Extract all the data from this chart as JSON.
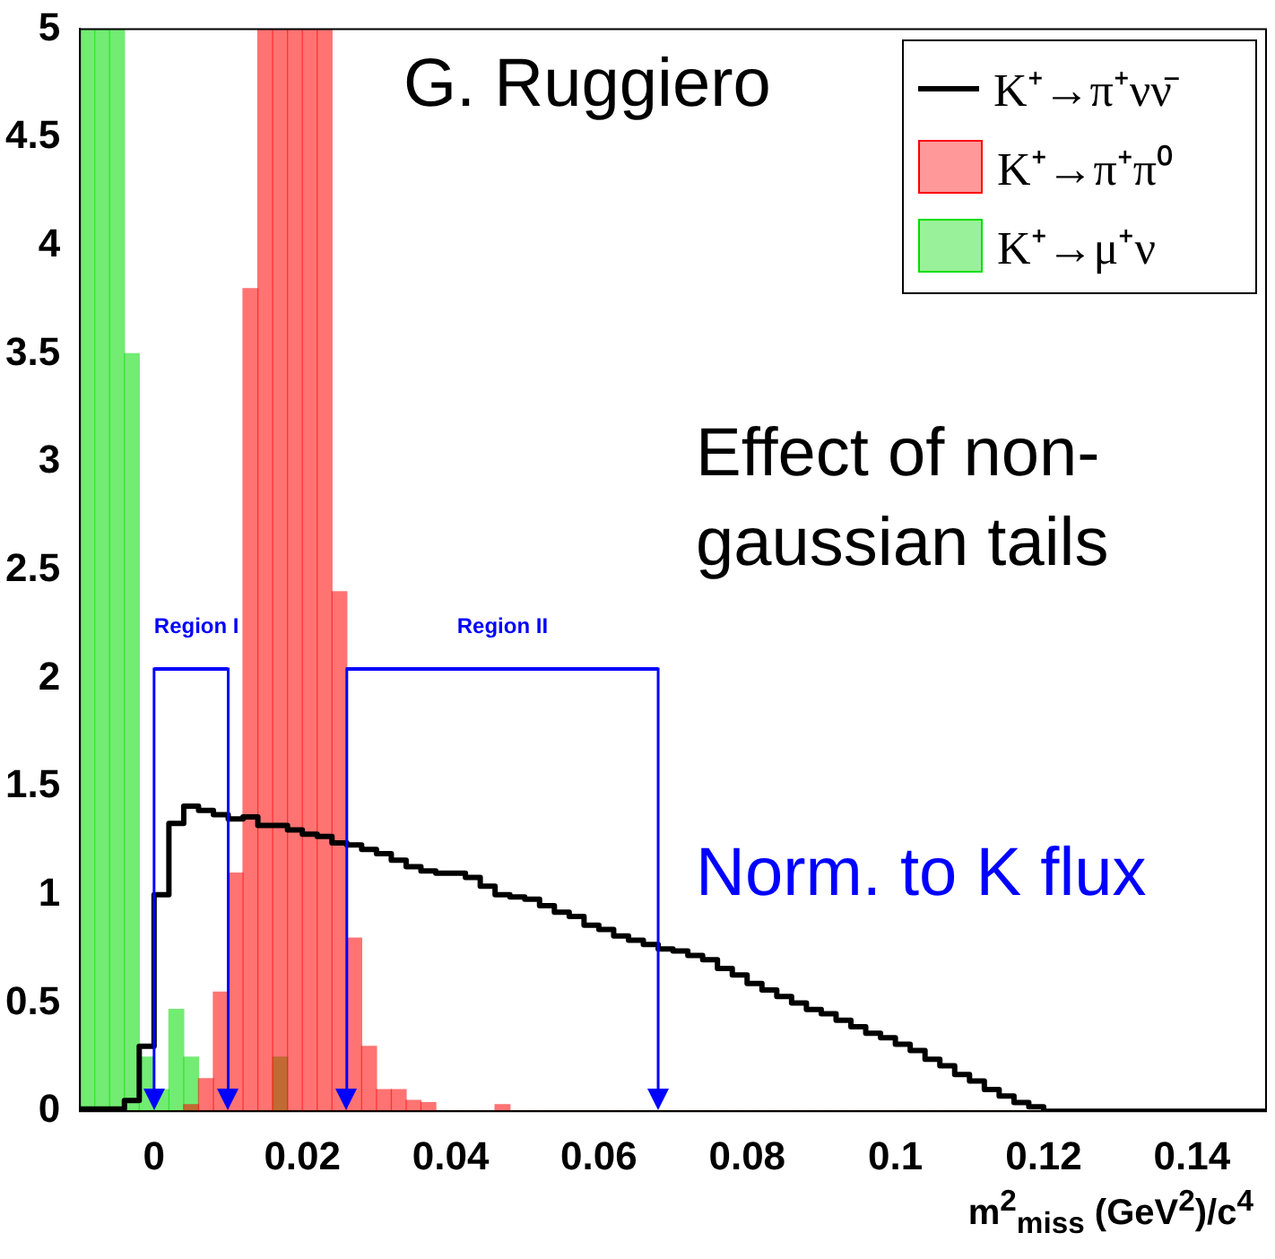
{
  "chart_data": {
    "type": "histogram",
    "xlabel": "m$^{2}$$_{miss}$ (GeV$^{2}$)/c$^{4}$",
    "bins": [
      -0.01,
      -0.008,
      -0.006,
      -0.004,
      -0.002,
      0,
      0.002,
      0.004,
      0.006,
      0.008,
      0.01,
      0.012,
      0.014,
      0.016,
      0.018,
      0.02,
      0.022,
      0.024,
      0.026,
      0.028,
      0.03,
      0.032,
      0.034,
      0.036,
      0.038,
      0.04,
      0.042,
      0.044,
      0.046,
      0.048,
      0.05,
      0.052,
      0.054,
      0.056,
      0.058,
      0.06,
      0.062,
      0.064,
      0.066,
      0.068,
      0.07,
      0.072,
      0.074,
      0.076,
      0.078,
      0.08,
      0.082,
      0.084,
      0.086,
      0.088,
      0.09,
      0.092,
      0.094,
      0.096,
      0.098,
      0.1,
      0.102,
      0.104,
      0.106,
      0.108,
      0.11,
      0.112,
      0.114,
      0.116,
      0.118,
      0.12,
      0.122,
      0.124,
      0.126,
      0.128,
      0.13,
      0.132,
      0.134,
      0.136,
      0.138,
      0.14,
      0.142,
      0.144,
      0.146,
      0.148,
      0.15
    ],
    "series": [
      {
        "name": "K⁺→π⁺νν̄",
        "color": "#000000",
        "values": [
          0.01,
          0.01,
          0.01,
          0.05,
          0.3,
          1.0,
          1.33,
          1.41,
          1.39,
          1.37,
          1.35,
          1.36,
          1.32,
          1.32,
          1.3,
          1.28,
          1.27,
          1.24,
          1.23,
          1.21,
          1.19,
          1.16,
          1.13,
          1.11,
          1.1,
          1.1,
          1.08,
          1.04,
          1.0,
          0.99,
          0.98,
          0.95,
          0.92,
          0.9,
          0.86,
          0.84,
          0.81,
          0.79,
          0.77,
          0.75,
          0.74,
          0.72,
          0.7,
          0.66,
          0.63,
          0.59,
          0.56,
          0.53,
          0.5,
          0.47,
          0.45,
          0.42,
          0.39,
          0.36,
          0.34,
          0.31,
          0.28,
          0.24,
          0.21,
          0.17,
          0.14,
          0.1,
          0.07,
          0.04,
          0.02,
          0,
          0,
          0,
          0,
          0,
          0,
          0,
          0,
          0,
          0,
          0,
          0,
          0,
          0,
          0
        ]
      },
      {
        "name": "K⁺→π⁺π⁰",
        "color": "#ff0000",
        "values": [
          0,
          0,
          0,
          0,
          0,
          0,
          0,
          0.03,
          0.15,
          0.55,
          1.1,
          3.8,
          5,
          5,
          5,
          5,
          5,
          2.4,
          0.8,
          0.3,
          0.1,
          0.1,
          0.05,
          0.04,
          0,
          0,
          0,
          0,
          0.03,
          0,
          0,
          0,
          0,
          0,
          0,
          0,
          0,
          0,
          0,
          0,
          0,
          0,
          0,
          0,
          0,
          0,
          0,
          0,
          0,
          0,
          0,
          0,
          0,
          0,
          0,
          0,
          0,
          0,
          0,
          0,
          0,
          0,
          0,
          0,
          0,
          0,
          0,
          0,
          0,
          0,
          0,
          0,
          0,
          0,
          0,
          0,
          0,
          0,
          0,
          0
        ]
      },
      {
        "name": "K⁺→μ⁺ν",
        "color": "#00dd00",
        "values": [
          5,
          5,
          5,
          3.5,
          0.25,
          0.1,
          0.47,
          0.25,
          0,
          0,
          0,
          0,
          0,
          0.25,
          0,
          0,
          0,
          0,
          0,
          0,
          0,
          0,
          0,
          0,
          0,
          0,
          0,
          0,
          0,
          0,
          0,
          0,
          0,
          0,
          0,
          0,
          0,
          0,
          0,
          0,
          0,
          0,
          0,
          0,
          0,
          0,
          0,
          0,
          0,
          0,
          0,
          0,
          0,
          0,
          0,
          0,
          0,
          0,
          0,
          0,
          0,
          0,
          0,
          0,
          0,
          0,
          0,
          0,
          0,
          0,
          0,
          0,
          0,
          0,
          0,
          0,
          0,
          0,
          0,
          0
        ]
      }
    ],
    "xlim": [
      -0.01,
      0.15
    ],
    "xticks": [
      0,
      0.02,
      0.04,
      0.06,
      0.08,
      0.1,
      0.12,
      0.14
    ],
    "ylim": [
      0,
      5
    ],
    "yticks": [
      0,
      0.5,
      1,
      1.5,
      2,
      2.5,
      3,
      3.5,
      4,
      4.5,
      5
    ],
    "ref_lines": [
      {
        "axis": "x",
        "value": 0,
        "color": "#0000ff"
      },
      {
        "axis": "x",
        "value": 0.01,
        "color": "#0000ff"
      },
      {
        "axis": "x",
        "value": 0.026,
        "color": "#0000ff"
      },
      {
        "axis": "x",
        "value": 0.068,
        "color": "#0000ff"
      }
    ],
    "annotations": [
      "G. Ruggiero",
      "Effect of non-gaussian tails",
      "Norm. to K flux",
      "Region I",
      "Region II"
    ],
    "legend": "top right",
    "grid": false
  }
}
